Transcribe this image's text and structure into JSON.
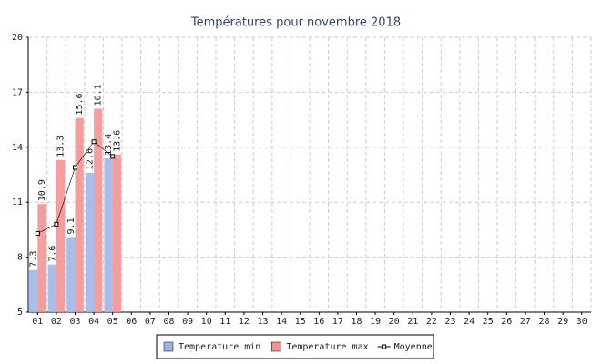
{
  "chart_data": {
    "type": "bar",
    "title": "Températures pour novembre 2018",
    "categories": [
      "01",
      "02",
      "03",
      "04",
      "05",
      "06",
      "07",
      "08",
      "09",
      "10",
      "11",
      "12",
      "13",
      "14",
      "15",
      "16",
      "17",
      "18",
      "19",
      "20",
      "21",
      "22",
      "23",
      "24",
      "25",
      "26",
      "27",
      "28",
      "29",
      "30"
    ],
    "series": [
      {
        "name": "Temperature min",
        "type": "bar",
        "color": "#9db6e8",
        "values": [
          7.3,
          7.6,
          9.1,
          12.6,
          13.4,
          null,
          null,
          null,
          null,
          null,
          null,
          null,
          null,
          null,
          null,
          null,
          null,
          null,
          null,
          null,
          null,
          null,
          null,
          null,
          null,
          null,
          null,
          null,
          null,
          null
        ]
      },
      {
        "name": "Temperature max",
        "type": "bar",
        "color": "#f59393",
        "values": [
          10.9,
          13.3,
          15.6,
          16.1,
          13.6,
          null,
          null,
          null,
          null,
          null,
          null,
          null,
          null,
          null,
          null,
          null,
          null,
          null,
          null,
          null,
          null,
          null,
          null,
          null,
          null,
          null,
          null,
          null,
          null,
          null
        ]
      },
      {
        "name": "Moyenne",
        "type": "line",
        "color": "#000000",
        "values": [
          9.3,
          9.8,
          12.9,
          14.3,
          13.5,
          null,
          null,
          null,
          null,
          null,
          null,
          null,
          null,
          null,
          null,
          null,
          null,
          null,
          null,
          null,
          null,
          null,
          null,
          null,
          null,
          null,
          null,
          null,
          null,
          null
        ]
      }
    ],
    "ylim": [
      5,
      20
    ],
    "yticks": [
      5,
      8,
      11,
      14,
      17,
      20
    ],
    "grid": true
  }
}
